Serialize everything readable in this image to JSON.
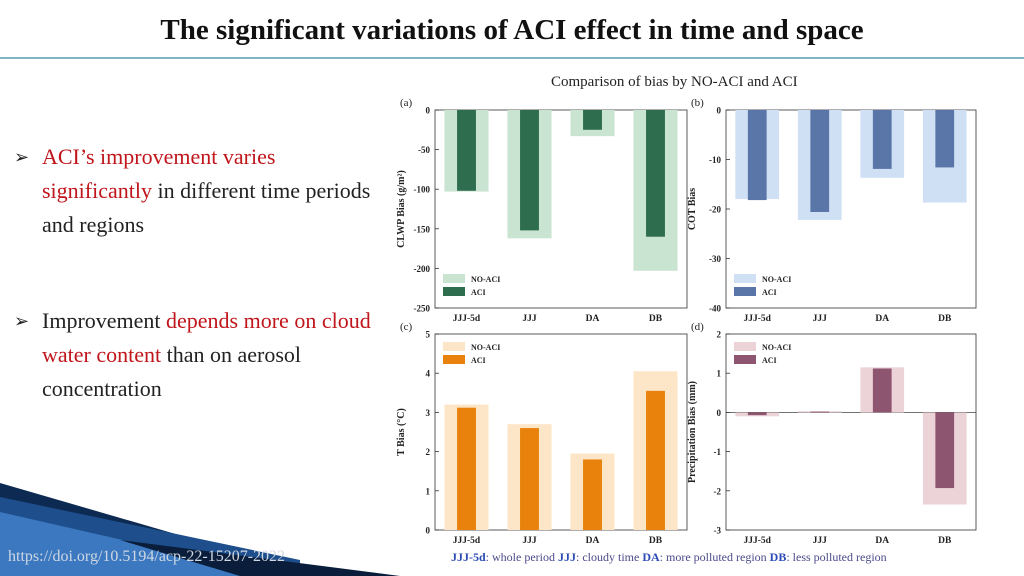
{
  "header": {
    "title": "The significant variations of ACI effect in time and space",
    "subtitle": "Comparison of bias by NO-ACI and ACI"
  },
  "bullets": [
    {
      "segments": [
        {
          "text": "ACI’s improvement varies significantly",
          "color": "#c0151b"
        },
        {
          "text": " in different time periods and regions",
          "color": "#222222"
        }
      ]
    },
    {
      "segments": [
        {
          "text": "Improvement ",
          "color": "#222222"
        },
        {
          "text": "depends more on cloud water content",
          "color": "#c0151b"
        },
        {
          "text": " than on aerosol concentration",
          "color": "#222222"
        }
      ]
    }
  ],
  "footer": {
    "doi": "https://doi.org/10.5194/acp-22-15207-2022",
    "legend_items": [
      {
        "abbr": "JJJ-5d",
        "desc": ": whole period "
      },
      {
        "abbr": "JJJ",
        "desc": ": cloudy time "
      },
      {
        "abbr": "DA",
        "desc": ": more polluted region "
      },
      {
        "abbr": "DB",
        "desc": ": less polluted region"
      }
    ]
  },
  "chart_data": [
    {
      "type": "bar",
      "panel": "(a)",
      "categories": [
        "JJJ-5d",
        "JJJ",
        "DA",
        "DB"
      ],
      "ylabel": "CLWP Bias (g/m²)",
      "ylim": [
        -250,
        0
      ],
      "yticks": [
        0,
        -50,
        -100,
        -150,
        -200,
        -250
      ],
      "series": [
        {
          "name": "NO-ACI",
          "values": [
            -103,
            -162,
            -33,
            -203
          ],
          "color": "#c9e4d1"
        },
        {
          "name": "ACI",
          "values": [
            -102,
            -152,
            -25,
            -160
          ],
          "color": "#2e6e4f"
        }
      ],
      "legend_position": "bottom-left"
    },
    {
      "type": "bar",
      "panel": "(b)",
      "categories": [
        "JJJ-5d",
        "JJJ",
        "DA",
        "DB"
      ],
      "ylabel": "COT Bias",
      "ylim": [
        -40,
        0
      ],
      "yticks": [
        0,
        -10,
        -20,
        -30,
        -40
      ],
      "series": [
        {
          "name": "NO-ACI",
          "values": [
            -18,
            -22.2,
            -13.7,
            -18.7
          ],
          "color": "#cfe0f5"
        },
        {
          "name": "ACI",
          "values": [
            -18.2,
            -20.6,
            -11.9,
            -11.6
          ],
          "color": "#5a75a8"
        }
      ],
      "legend_position": "bottom-left"
    },
    {
      "type": "bar",
      "panel": "(c)",
      "categories": [
        "JJJ-5d",
        "JJJ",
        "DA",
        "DB"
      ],
      "ylabel": "T Bias (°C)",
      "ylim": [
        0,
        5
      ],
      "yticks": [
        0,
        1,
        2,
        3,
        4,
        5
      ],
      "series": [
        {
          "name": "NO-ACI",
          "values": [
            3.2,
            2.7,
            1.95,
            4.05
          ],
          "color": "#fde6c8"
        },
        {
          "name": "ACI",
          "values": [
            3.12,
            2.6,
            1.8,
            3.55
          ],
          "color": "#e8820c"
        }
      ],
      "legend_position": "top-left"
    },
    {
      "type": "bar",
      "panel": "(d)",
      "categories": [
        "JJJ-5d",
        "JJJ",
        "DA",
        "DB"
      ],
      "ylabel": "Precipitation Bias (mm)",
      "ylim": [
        -3,
        2
      ],
      "yticks": [
        2,
        1,
        0,
        -1,
        -2,
        -3
      ],
      "series": [
        {
          "name": "NO-ACI",
          "values": [
            -0.1,
            0.03,
            1.15,
            -2.35
          ],
          "color": "#ecd3d7"
        },
        {
          "name": "ACI",
          "values": [
            -0.07,
            0.02,
            1.12,
            -1.93
          ],
          "color": "#8e5570"
        }
      ],
      "legend_position": "top-left"
    }
  ]
}
